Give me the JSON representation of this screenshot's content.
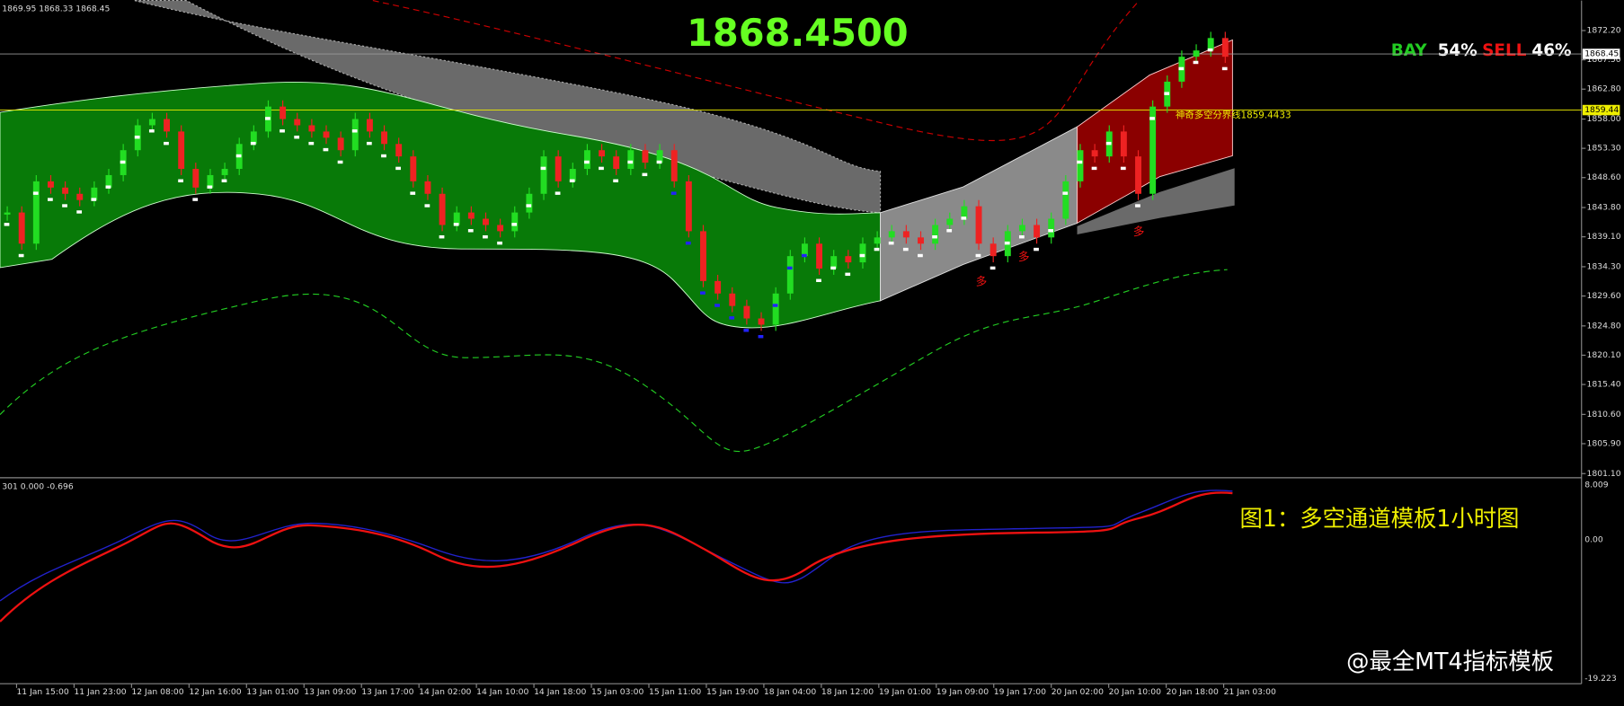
{
  "chart_data": {
    "type": "candlestick",
    "info": "1869.95 1868.33 1868.45",
    "price": "1868.4500",
    "bay": "BAY",
    "bay_pct": "54%",
    "sell": "SELL",
    "sell_pct": "46%",
    "divider_note": "神奇多空分界线1859.4433",
    "signals": [
      "多",
      "多",
      "多"
    ],
    "sub_info": "301 0.000 -0.696",
    "sub_ticks": [
      "8.009",
      "0.00",
      "-19.223"
    ],
    "caption": "图1：多空通道模板1小时图",
    "watermark": "@最全MT4指标模板",
    "up_color": "#22dd22",
    "down_color": "#ee2222",
    "values": [
      1843,
      1838,
      1848,
      1847,
      1846,
      1845,
      1847,
      1849,
      1853,
      1857,
      1858,
      1856,
      1850,
      1847,
      1849,
      1850,
      1854,
      1856,
      1860,
      1858,
      1857,
      1856,
      1855,
      1853,
      1858,
      1856,
      1854,
      1852,
      1848,
      1846,
      1841,
      1843,
      1842,
      1841,
      1840,
      1843,
      1846,
      1852,
      1848,
      1850,
      1853,
      1852,
      1850,
      1853,
      1851,
      1853,
      1848,
      1840,
      1832,
      1830,
      1828,
      1826,
      1825,
      1830,
      1836,
      1838,
      1834,
      1836,
      1835,
      1838,
      1839,
      1840,
      1839,
      1838,
      1841,
      1842,
      1844,
      1838,
      1836,
      1840,
      1841,
      1839,
      1842,
      1848,
      1853,
      1852,
      1856,
      1852,
      1846,
      1860,
      1864,
      1868,
      1869,
      1871,
      1868
    ],
    "hlines": [
      {
        "value": 1868.45,
        "label": "1868.45"
      },
      {
        "value": 1859.44,
        "label": "1859.44"
      }
    ],
    "ylim": [
      1801.1,
      1872.2
    ],
    "yticks": [
      {
        "value": 1872.2,
        "label": "1872.20"
      },
      {
        "value": 1867.5,
        "label": "1867.50"
      },
      {
        "value": 1862.8,
        "label": "1862.80"
      },
      {
        "value": 1858,
        "label": "1858.00"
      },
      {
        "value": 1853.3,
        "label": "1853.30"
      },
      {
        "value": 1848.6,
        "label": "1848.60"
      },
      {
        "value": 1843.8,
        "label": "1843.80"
      },
      {
        "value": 1839.1,
        "label": "1839.10"
      },
      {
        "value": 1834.3,
        "label": "1834.30"
      },
      {
        "value": 1829.6,
        "label": "1829.60"
      },
      {
        "value": 1824.8,
        "label": "1824.80"
      },
      {
        "value": 1820.1,
        "label": "1820.10"
      },
      {
        "value": 1815.4,
        "label": "1815.40"
      },
      {
        "value": 1810.6,
        "label": "1810.60"
      },
      {
        "value": 1805.9,
        "label": "1805.90"
      },
      {
        "value": 1801.1,
        "label": "1801.10"
      }
    ],
    "time_labels": [
      "11 Jan 15:00",
      "11 Jan 23:00",
      "12 Jan 08:00",
      "12 Jan 16:00",
      "13 Jan 01:00",
      "13 Jan 09:00",
      "13 Jan 17:00",
      "14 Jan 02:00",
      "14 Jan 10:00",
      "14 Jan 18:00",
      "15 Jan 03:00",
      "15 Jan 11:00",
      "15 Jan 19:00",
      "18 Jan 04:00",
      "18 Jan 12:00",
      "19 Jan 01:00",
      "19 Jan 09:00",
      "19 Jan 17:00",
      "20 Jan 02:00",
      "20 Jan 10:00",
      "20 Jan 18:00",
      "21 Jan 03:00"
    ]
  }
}
